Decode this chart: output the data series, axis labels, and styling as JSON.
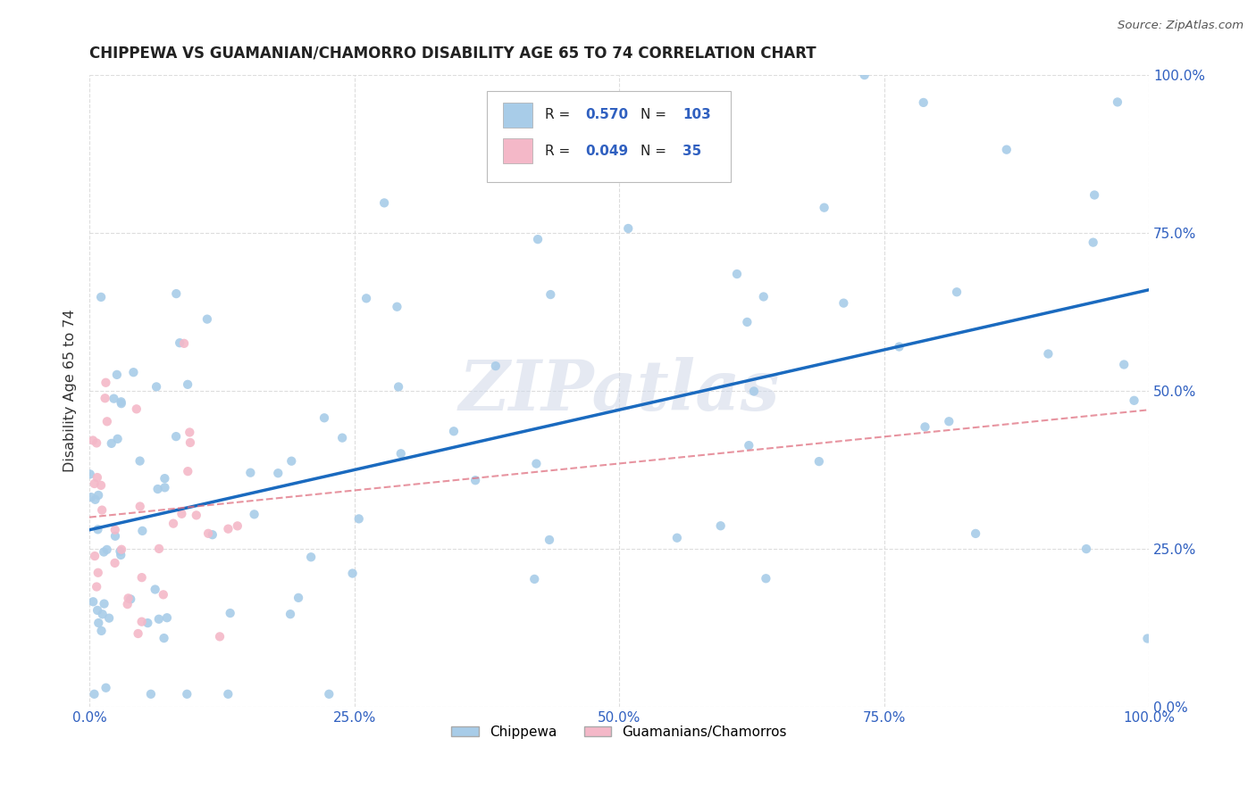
{
  "title": "CHIPPEWA VS GUAMANIAN/CHAMORRO DISABILITY AGE 65 TO 74 CORRELATION CHART",
  "source": "Source: ZipAtlas.com",
  "ylabel": "Disability Age 65 to 74",
  "watermark": "ZIPatlas",
  "chippewa_R": 0.57,
  "chippewa_N": 103,
  "guamanian_R": 0.049,
  "guamanian_N": 35,
  "chippewa_color": "#a8cce8",
  "guamanian_color": "#f4b8c8",
  "chippewa_line_color": "#1a6abf",
  "guamanian_line_color": "#e07080",
  "bg_color": "#ffffff",
  "grid_color": "#dddddd",
  "title_color": "#222222",
  "axis_label_color": "#333333",
  "tick_color": "#3060c0",
  "legend_text_color": "#222222",
  "legend_val_color": "#3060c0",
  "xlim": [
    0.0,
    1.0
  ],
  "ylim": [
    0.0,
    1.0
  ],
  "xticks": [
    0.0,
    0.25,
    0.5,
    0.75,
    1.0
  ],
  "yticks": [
    0.0,
    0.25,
    0.5,
    0.75,
    1.0
  ],
  "xtick_labels": [
    "0.0%",
    "25.0%",
    "50.0%",
    "75.0%",
    "100.0%"
  ],
  "ytick_labels": [
    "0.0%",
    "25.0%",
    "50.0%",
    "75.0%",
    "100.0%"
  ],
  "chip_line_x0": 0.0,
  "chip_line_y0": 0.28,
  "chip_line_x1": 1.0,
  "chip_line_y1": 0.66,
  "guam_line_x0": 0.0,
  "guam_line_y0": 0.3,
  "guam_line_x1": 1.0,
  "guam_line_y1": 0.47
}
